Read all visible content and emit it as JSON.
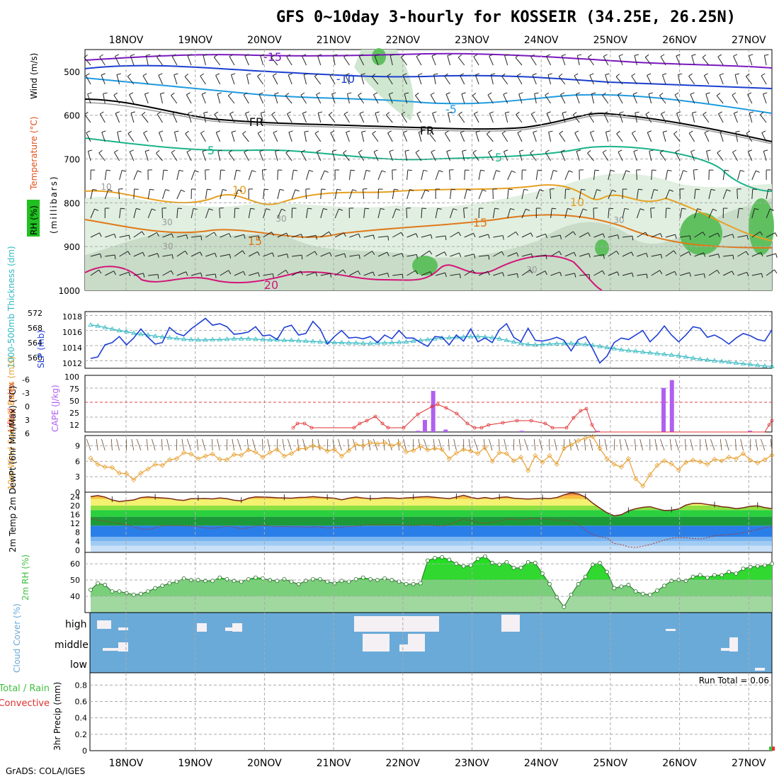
{
  "title": "GFS 0~10day 3-hourly for KOSSEIR (34.25E, 26.25N)",
  "credit": "GrADS: COLA/IGES",
  "colors": {
    "wind_temp_purple": "#7b18c0",
    "blue": "#1a3fd0",
    "lightblue": "#1e9be0",
    "teal": "#19b38a",
    "orange": "#e8a020",
    "darkorange": "#e07818",
    "magenta": "#d41478",
    "slp": "#1f3fd6",
    "thick": "#2fb8c0",
    "cape": "#b060f0",
    "li": "#e03030",
    "wind10": "#e8a030",
    "rhgreen": "#40c040",
    "cloud": "#6aaad8"
  },
  "chart_data": [
    {
      "type": "contour",
      "panel": "upper",
      "title": "Temperature / RH / Wind",
      "ylabel_parts": [
        "RH (%)",
        "Temperature (°C)",
        "Wind (m/s)"
      ],
      "ylabel2": "(millibars)",
      "x_ticks": [
        "18NOV",
        "19NOV",
        "20NOV",
        "21NOV",
        "22NOV",
        "23NOV",
        "24NOV",
        "25NOV",
        "26NOV",
        "27NOV"
      ],
      "y_ticks": [
        500,
        600,
        700,
        800,
        900,
        1000
      ],
      "ylim": [
        450,
        1000
      ],
      "isotherm_labels": [
        "-15",
        "-10",
        "-5",
        "FR",
        "FR",
        "5",
        "5",
        "10",
        "10",
        "15",
        "15",
        "20"
      ],
      "rh_labels": [
        "10",
        "30",
        "30",
        "30",
        "30",
        "30"
      ]
    },
    {
      "type": "line",
      "panel": "slp",
      "ylabel_left": "1000-500mb Thickness (dm)",
      "ylabel_right": "SLP (mb)",
      "y_ticks_left": [
        "572",
        "568",
        "564",
        "560"
      ],
      "y_ticks_right": [
        "1018",
        "1016",
        "1014",
        "1012"
      ],
      "ylim_slp": [
        1011,
        1018.5
      ],
      "series": [
        {
          "name": "SLP",
          "values": [
            1012.3,
            1012.5,
            1014.1,
            1014.4,
            1015.2,
            1014.1,
            1015.0,
            1016.2,
            1015.1,
            1014.2,
            1014.4,
            1016.4,
            1015.6,
            1015.3,
            1016.2,
            1016.9,
            1017.6,
            1016.7,
            1016.9,
            1016.5,
            1015.5,
            1015.6,
            1015.8,
            1016.5,
            1015.3,
            1015.4,
            1014.8,
            1016.4,
            1016.7,
            1015.4,
            1015.6,
            1017.2,
            1016.2,
            1014.2,
            1015.2,
            1016.0,
            1015.0,
            1015.1,
            1014.9,
            1015.2,
            1014.4,
            1015.4,
            1014.9,
            1016.0,
            1015.0,
            1015.0,
            1014.4,
            1013.9,
            1015.2,
            1015.1,
            1014.1,
            1015.4,
            1014.6,
            1016.2,
            1014.5,
            1015.0,
            1014.4,
            1016.1,
            1016.9,
            1015.1,
            1014.5,
            1016.3,
            1014.7,
            1014.6,
            1014.8,
            1015.1,
            1014.7,
            1013.3,
            1014.8,
            1015.2,
            1013.6,
            1011.7,
            1012.6,
            1014.4,
            1015.0,
            1014.8,
            1015.4,
            1016.0,
            1014.5,
            1015.4,
            1016.6,
            1015.4,
            1014.5,
            1015.4,
            1016.5,
            1016.3,
            1015.1,
            1015.4,
            1014.9,
            1014.2,
            1015.0,
            1015.6,
            1015.3,
            1014.8,
            1014.6,
            1016.1
          ]
        },
        {
          "name": "Thickness",
          "values": [
            569.5,
            569.2,
            568.8,
            568.4,
            568.0,
            567.7,
            567.3,
            567.0,
            566.8,
            566.5,
            566.3,
            566.1,
            565.9,
            565.7,
            565.6,
            565.5,
            565.5,
            565.6,
            565.6,
            565.7,
            565.8,
            565.8,
            565.8,
            565.7,
            565.6,
            565.5,
            565.5,
            565.4,
            565.4,
            565.3,
            565.2,
            565.1,
            565.0,
            564.9,
            564.8,
            564.8,
            564.7,
            564.7,
            564.6,
            564.6,
            564.7,
            564.7,
            564.8,
            564.9,
            565.0,
            565.2,
            565.4,
            565.6,
            565.8,
            566.0,
            566.1,
            566.2,
            566.3,
            566.4,
            566.4,
            566.3,
            566.1,
            565.8,
            565.4,
            565.0,
            564.6,
            564.3,
            564.2,
            564.3,
            564.4,
            564.5,
            564.6,
            564.6,
            564.5,
            564.3,
            564.1,
            563.8,
            563.5,
            563.2,
            562.9,
            562.7,
            562.5,
            562.3,
            562.1,
            561.9,
            561.7,
            561.5,
            561.3,
            561.0,
            560.7,
            560.4,
            560.2,
            560.0,
            559.8,
            559.6,
            559.4,
            559.2,
            559.0,
            558.8,
            558.6,
            558.5
          ]
        }
      ]
    },
    {
      "type": "bar+line",
      "panel": "cape",
      "ylabel_left": "Lifted Index",
      "ylabel_right": "CAPE (J/kg)",
      "y_ticks_left": [
        "-6",
        "-3",
        "0",
        "3",
        "6"
      ],
      "y_ticks_right": [
        "100",
        "75",
        "50",
        "25",
        "12"
      ],
      "cape_bars": [
        {
          "x": 4.7,
          "v": 14
        },
        {
          "x": 4.8,
          "v": 32
        },
        {
          "x": 4.92,
          "v": 80
        },
        {
          "x": 5.1,
          "v": 16
        },
        {
          "x": 6.2,
          "v": 14
        },
        {
          "x": 7.3,
          "v": 14
        },
        {
          "x": 8.25,
          "v": 85
        },
        {
          "x": 8.37,
          "v": 98
        },
        {
          "x": 9.5,
          "v": 14
        },
        {
          "x": 10.15,
          "v": 14
        },
        {
          "x": 10.25,
          "v": 14
        }
      ]
    },
    {
      "type": "line",
      "panel": "wind10",
      "ylabel": "10m Wind Speed & Barbs (m/s)",
      "y_ticks": [
        "9",
        "6",
        "3",
        "0"
      ],
      "ylim": [
        0,
        11
      ],
      "values": [
        6.6,
        5.4,
        4.9,
        4.8,
        3.7,
        3.6,
        2.4,
        3.7,
        4.5,
        5.4,
        5.2,
        6.3,
        6.5,
        7.7,
        7.4,
        6.5,
        7.0,
        7.4,
        6.4,
        6.3,
        7.3,
        7.2,
        8.2,
        7.8,
        6.8,
        7.7,
        8.3,
        7.0,
        7.5,
        8.4,
        8.5,
        9.0,
        8.7,
        8.0,
        8.3,
        7.0,
        8.1,
        9.3,
        9.0,
        9.6,
        9.4,
        9.6,
        9.0,
        9.5,
        7.8,
        8.1,
        8.9,
        8.2,
        8.5,
        8.3,
        6.5,
        7.6,
        8.3,
        8.0,
        7.5,
        8.7,
        6.0,
        7.7,
        7.5,
        6.1,
        6.8,
        4.2,
        7.1,
        5.8,
        7.1,
        5.4,
        8.5,
        9.2,
        10.0,
        10.5,
        10.8,
        8.5,
        6.5,
        5.4,
        4.9,
        6.5,
        2.6,
        1.2,
        3.4,
        5.2,
        6.1,
        5.5,
        4.3,
        5.8,
        6.2,
        5.9,
        5.4,
        6.4,
        6.1,
        6.8,
        6.5,
        7.5,
        6.2,
        5.7,
        6.3,
        7.2
      ]
    },
    {
      "type": "area",
      "panel": "temp",
      "ylabel": "2m Temp 2m DewPt (6hr Min/Max) (°C)",
      "y_ticks": [
        "24",
        "20",
        "16",
        "12",
        "8",
        "4",
        "0"
      ],
      "ylim": [
        -1,
        26
      ],
      "series": [
        {
          "name": "Temp",
          "values": [
            24.0,
            24.5,
            23.8,
            22.5,
            21.8,
            22.2,
            22.5,
            23.6,
            23.9,
            23.6,
            23.4,
            23.2,
            22.6,
            22.3,
            23.1,
            23.1,
            23.2,
            23.0,
            23.4,
            23.1,
            22.4,
            22.1,
            23.3,
            23.9,
            23.8,
            23.7,
            23.5,
            23.4,
            23.3,
            23.6,
            23.7,
            24.0,
            23.7,
            23.5,
            23.3,
            22.6,
            23.3,
            23.8,
            23.4,
            23.1,
            23.2,
            23.5,
            23.4,
            23.2,
            23.4,
            23.6,
            23.9,
            24.0,
            23.7,
            23.4,
            23.1,
            23.8,
            24.6,
            23.7,
            23.1,
            23.6,
            23.1,
            23.6,
            23.9,
            23.3,
            23.1,
            22.9,
            23.1,
            23.3,
            23.1,
            23.6,
            24.8,
            25.7,
            25.2,
            23.8,
            21.1,
            18.9,
            16.8,
            15.4,
            15.9,
            17.6,
            18.6,
            19.2,
            19.5,
            18.6,
            17.8,
            17.9,
            18.5,
            20.2,
            21.0,
            21.0,
            20.5,
            20.1,
            19.5,
            19.2,
            18.6,
            19.0,
            19.7,
            19.9,
            19.1,
            18.6
          ]
        },
        {
          "name": "DewPt",
          "values": [
            14.0,
            13.5,
            13.0,
            12.5,
            12.0,
            11.5,
            10.5,
            9.5,
            9.2,
            10.0,
            11.0,
            11.0,
            11.0,
            11.0,
            10.8,
            10.5,
            10.0,
            9.8,
            10.2,
            10.8,
            10.4,
            9.6,
            10.0,
            10.8,
            11.2,
            10.8,
            10.5,
            10.6,
            10.5,
            10.5,
            10.3,
            10.5,
            10.4,
            10.0,
            10.2,
            10.3,
            10.6,
            10.8,
            11.3,
            11.5,
            11.3,
            11.4,
            11.5,
            11.5,
            11.2,
            11.0,
            11.2,
            11.4,
            11.0,
            10.8,
            11.5,
            12.8,
            13.8,
            13.2,
            12.5,
            12.0,
            12.5,
            13.0,
            14.0,
            13.8,
            13.5,
            14.0,
            14.3,
            14.0,
            13.8,
            13.5,
            13.6,
            13.0,
            11.5,
            9.0,
            7.0,
            6.0,
            5.5,
            3.0,
            2.5,
            1.5,
            1.2,
            1.8,
            2.5,
            3.5,
            4.5,
            5.3,
            5.7,
            5.6,
            5.2,
            5.0,
            5.6,
            6.5,
            6.8,
            7.0,
            7.3,
            7.8,
            8.5,
            9.3,
            10.1,
            10.6
          ]
        }
      ]
    },
    {
      "type": "area",
      "panel": "rh",
      "ylabel": "2m RH (%)",
      "y_ticks": [
        "60",
        "50",
        "40"
      ],
      "ylim": [
        30,
        67
      ],
      "values": [
        44.0,
        48.0,
        47.0,
        43.0,
        43.0,
        42.0,
        41.0,
        41.5,
        43.0,
        45.0,
        46.5,
        48.0,
        49.0,
        51.0,
        50.0,
        50.0,
        49.5,
        49.5,
        51.5,
        50.5,
        49.5,
        49.0,
        50.5,
        51.5,
        51.0,
        50.0,
        49.5,
        50.5,
        49.0,
        47.5,
        49.5,
        50.5,
        50.5,
        49.0,
        48.0,
        49.5,
        49.0,
        50.5,
        51.5,
        50.5,
        50.0,
        51.0,
        50.0,
        49.0,
        47.5,
        47.5,
        48.0,
        62.0,
        63.5,
        64.0,
        62.5,
        60.0,
        58.5,
        59.0,
        63.0,
        64.5,
        60.5,
        59.5,
        61.0,
        57.5,
        57.5,
        61.0,
        60.5,
        54.0,
        47.5,
        39.5,
        33.5,
        41.0,
        47.5,
        52.0,
        59.5,
        60.5,
        55.0,
        45.0,
        46.0,
        47.0,
        43.0,
        41.5,
        41.0,
        43.5,
        46.5,
        49.5,
        50.0,
        49.5,
        52.0,
        53.0,
        51.5,
        53.0,
        53.0,
        55.0,
        54.0,
        57.0,
        58.0,
        58.5,
        59.0,
        60.0
      ]
    },
    {
      "type": "bar",
      "panel": "cloud",
      "ylabel": "Cloud Cover (%)",
      "levels": [
        "high",
        "middle",
        "low"
      ]
    },
    {
      "type": "bar",
      "panel": "precip",
      "ylabel_left": "Total / Rain",
      "ylabel_left2": "Convective",
      "ylabel": "3hr Precip (mm)",
      "y_ticks": [
        "0.8",
        "0.6",
        "0.4",
        "0.2",
        "0"
      ],
      "ylim": [
        0,
        0.95
      ],
      "run_total": "Run Total = 0.06",
      "bars": [
        {
          "x": 95,
          "total": 0.05,
          "conv": 0.05
        }
      ]
    }
  ]
}
